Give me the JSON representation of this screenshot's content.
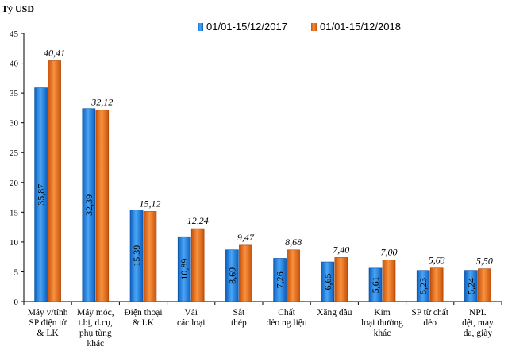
{
  "chart_data": {
    "type": "bar",
    "ylabel": "Tỷ USD",
    "ylim": [
      0,
      45
    ],
    "yticks": [
      0,
      5,
      10,
      15,
      20,
      25,
      30,
      35,
      40,
      45
    ],
    "grid": false,
    "legend_position": "top-right",
    "categories": [
      [
        "Máy v/tính",
        "SP điện tử",
        "& LK"
      ],
      [
        "Máy móc,",
        "t.bị, d.cụ,",
        "phụ tùng",
        "khác"
      ],
      [
        "Điện thoại",
        "& LK"
      ],
      [
        "Vải",
        "các loại"
      ],
      [
        "Sắt",
        "thép"
      ],
      [
        "Chất",
        "dẻo ng.liệu"
      ],
      [
        "Xăng dầu"
      ],
      [
        "Kim",
        "loại thường",
        "khác"
      ],
      [
        "SP từ chất",
        "dẻo"
      ],
      [
        "NPL",
        "dệt, may",
        "da, giày"
      ]
    ],
    "series": [
      {
        "name": "01/01-15/12/2017",
        "color": "#1f7fe0",
        "values": [
          35.87,
          32.39,
          15.39,
          10.89,
          8.69,
          7.26,
          6.65,
          5.61,
          5.23,
          5.24
        ],
        "labels": [
          "35,87",
          "32,39",
          "15,39",
          "10,89",
          "8,69",
          "7,26",
          "6,65",
          "5,61",
          "5,23",
          "5,24"
        ]
      },
      {
        "name": "01/01-15/12/2018",
        "color": "#f07317",
        "values": [
          40.41,
          32.12,
          15.12,
          12.24,
          9.47,
          8.68,
          7.4,
          7.0,
          5.63,
          5.5
        ],
        "labels": [
          "40,41",
          "32,12",
          "15,12",
          "12,24",
          "9,47",
          "8,68",
          "7,40",
          "7,00",
          "5,63",
          "5,50"
        ]
      }
    ]
  }
}
